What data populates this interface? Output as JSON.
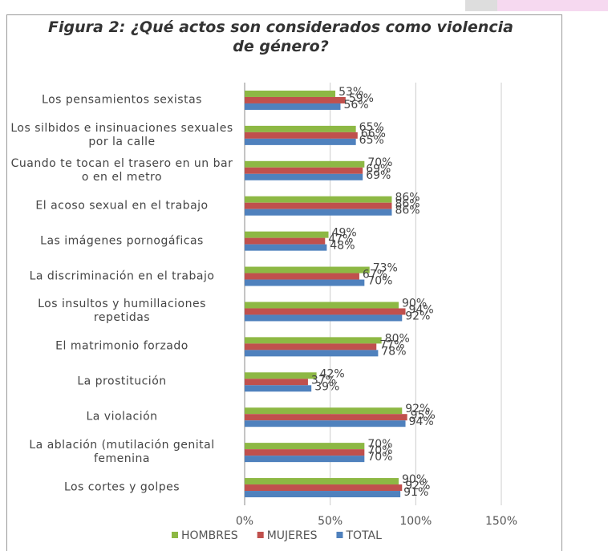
{
  "chart_data": {
    "type": "barh",
    "title": "Figura 2: ¿Qué actos son considerados como violencia de género?",
    "categories": [
      "Los pensamientos sexistas",
      "Los silbidos e insinuaciones sexuales por la calle",
      "Cuando te tocan el trasero en un bar o en el metro",
      "El acoso sexual en el trabajo",
      "Las imágenes pornogáficas",
      "La discriminación en el trabajo",
      "Los insultos y humillaciones repetidas",
      "El matrimonio forzado",
      "La prostitución",
      "La violación",
      "La ablación (mutilación genital femenina",
      "Los cortes y golpes"
    ],
    "series": [
      {
        "name": "HOMBRES",
        "color": "#8db844",
        "values": [
          53,
          65,
          70,
          86,
          49,
          73,
          90,
          80,
          42,
          92,
          70,
          90
        ],
        "value_labels": [
          "53%",
          "65%",
          "70%",
          "86%",
          "49%",
          "73%",
          "90%",
          "80%",
          "42%",
          "92%",
          "70%",
          "90%"
        ]
      },
      {
        "name": "MUJERES",
        "color": "#c0504d",
        "values": [
          59,
          66,
          69,
          86,
          47,
          67,
          94,
          77,
          37,
          95,
          70,
          92
        ],
        "value_labels": [
          "59%",
          "66%",
          "69%",
          "86%",
          "47%",
          "67%",
          "94%",
          "77%",
          "37%",
          "95%",
          "70%",
          "92%"
        ]
      },
      {
        "name": "TOTAL",
        "color": "#4f81bd",
        "values": [
          56,
          65,
          69,
          86,
          48,
          70,
          92,
          78,
          39,
          94,
          70,
          91
        ],
        "value_labels": [
          "56%",
          "65%",
          "69%",
          "86%",
          "48%",
          "70%",
          "92%",
          "78%",
          "39%",
          "94%",
          "70%",
          "91%"
        ]
      }
    ],
    "xlim": [
      0,
      150
    ],
    "xticks": [
      {
        "value": 0,
        "label": "0%"
      },
      {
        "value": 50,
        "label": "50%"
      },
      {
        "value": 100,
        "label": "100%"
      },
      {
        "value": 150,
        "label": "150%"
      }
    ],
    "grid": true,
    "legend": "bottom"
  }
}
